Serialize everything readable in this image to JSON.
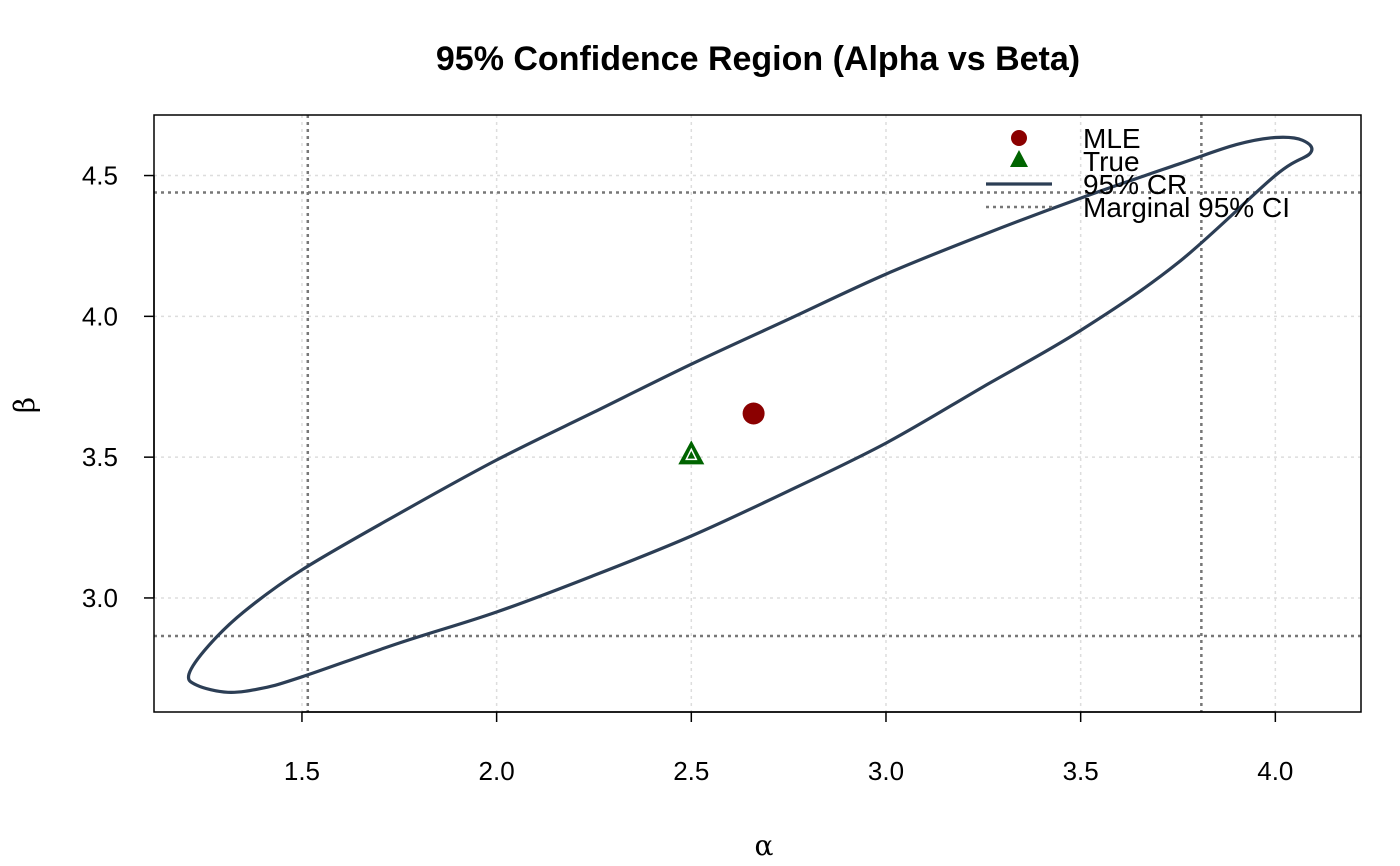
{
  "chart_data": {
    "type": "scatter",
    "title": "95% Confidence Region (Alpha vs Beta)",
    "xlabel": "α",
    "ylabel": "β",
    "xlim": [
      1.12,
      4.22
    ],
    "ylim": [
      2.595,
      4.715
    ],
    "xticks": [
      1.5,
      2.0,
      2.5,
      3.0,
      3.5,
      4.0
    ],
    "xtick_labels": [
      "1.5",
      "2.0",
      "2.5",
      "3.0",
      "3.5",
      "4.0"
    ],
    "yticks": [
      3.0,
      3.5,
      4.0,
      4.5
    ],
    "ytick_labels": [
      "3.0",
      "3.5",
      "4.0",
      "4.5"
    ],
    "grid": true,
    "legend_position": "top-right",
    "mle": {
      "alpha": 2.66,
      "beta": 3.655
    },
    "true_value": {
      "alpha": 2.5,
      "beta": 3.51
    },
    "confidence_region": {
      "center": [
        2.66,
        3.655
      ],
      "points": [
        [
          1.31,
          2.665
        ],
        [
          1.23,
          2.69
        ],
        [
          1.21,
          2.73
        ],
        [
          1.26,
          2.83
        ],
        [
          1.35,
          2.95
        ],
        [
          1.5,
          3.1
        ],
        [
          1.75,
          3.3
        ],
        [
          2.0,
          3.49
        ],
        [
          2.25,
          3.66
        ],
        [
          2.5,
          3.83
        ],
        [
          2.75,
          3.99
        ],
        [
          3.0,
          4.15
        ],
        [
          3.25,
          4.29
        ],
        [
          3.5,
          4.42
        ],
        [
          3.75,
          4.54
        ],
        [
          3.9,
          4.61
        ],
        [
          4.0,
          4.635
        ],
        [
          4.07,
          4.625
        ],
        [
          4.09,
          4.58
        ],
        [
          4.0,
          4.5
        ],
        [
          3.75,
          4.19
        ],
        [
          3.5,
          3.95
        ],
        [
          3.25,
          3.75
        ],
        [
          3.0,
          3.55
        ],
        [
          2.75,
          3.38
        ],
        [
          2.5,
          3.22
        ],
        [
          2.25,
          3.08
        ],
        [
          2.0,
          2.95
        ],
        [
          1.75,
          2.84
        ],
        [
          1.5,
          2.72
        ],
        [
          1.4,
          2.68
        ],
        [
          1.31,
          2.665
        ]
      ]
    },
    "marginal_ci": {
      "alpha": [
        1.515,
        3.81
      ],
      "beta": [
        2.865,
        4.44
      ]
    },
    "colors": {
      "mle": "#8b0000",
      "true": "#006400",
      "region": "#2c3e55",
      "ci": "#777777",
      "grid": "#dddddd"
    },
    "legend": [
      {
        "label": "MLE",
        "symbol": "circle"
      },
      {
        "label": "True",
        "symbol": "triangle"
      },
      {
        "label": "95% CR",
        "symbol": "line"
      },
      {
        "label": "Marginal 95% CI",
        "symbol": "dashed-line"
      }
    ]
  }
}
